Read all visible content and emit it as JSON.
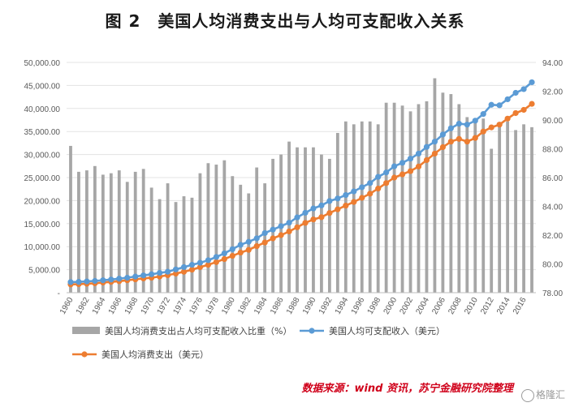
{
  "title": "图 2　美国人均消费支出与人均可支配收入关系",
  "source": "数据来源：wind 资讯，苏宁金融研究院整理",
  "watermark": "格隆汇",
  "chart_data": {
    "type": "bar+line",
    "title": "图 2　美国人均消费支出与人均可支配收入关系",
    "x_tick_labels": [
      "1960",
      "1962",
      "1964",
      "1966",
      "1968",
      "1970",
      "1972",
      "1974",
      "1976",
      "1978",
      "1980",
      "1982",
      "1984",
      "1986",
      "1988",
      "1990",
      "1992",
      "1994",
      "1996",
      "1998",
      "2000",
      "2002",
      "2004",
      "2006",
      "2008",
      "2010",
      "2012",
      "2014",
      "2016"
    ],
    "left_axis": {
      "ylim": [
        0,
        50000
      ],
      "tick_labels": [
        "-",
        "5,000.00",
        "10,000.00",
        "15,000.00",
        "20,000.00",
        "25,000.00",
        "30,000.00",
        "35,000.00",
        "40,000.00",
        "45,000.00",
        "50,000.00"
      ]
    },
    "right_axis": {
      "ylim": [
        78,
        94
      ],
      "tick_labels": [
        "78.00",
        "80.00",
        "82.00",
        "84.00",
        "86.00",
        "88.00",
        "90.00",
        "92.00",
        "94.00"
      ]
    },
    "legend_position": "bottom",
    "colors": {
      "bar": "#a6a6a6",
      "income": "#5b9bd5",
      "consumption": "#ed7d31"
    },
    "series": [
      {
        "name": "美国人均消费支出占人均可支配收入比重（%）",
        "type": "bar",
        "axis": "right",
        "years": [
          1960,
          1961,
          1962,
          1963,
          1964,
          1965,
          1966,
          1967,
          1968,
          1969,
          1970,
          1971,
          1972,
          1973,
          1974,
          1975,
          1976,
          1977,
          1978,
          1979,
          1980,
          1981,
          1982,
          1983,
          1984,
          1985,
          1986,
          1987,
          1988,
          1989,
          1990,
          1991,
          1992,
          1993,
          1994,
          1995,
          1996,
          1997,
          1998,
          1999,
          2000,
          2001,
          2002,
          2003,
          2004,
          2005,
          2006,
          2007,
          2008,
          2009,
          2010,
          2011,
          2012,
          2013,
          2014,
          2015,
          2016,
          2017
        ],
        "values": [
          88.2,
          86.4,
          86.5,
          86.8,
          86.2,
          86.3,
          86.5,
          85.7,
          86.4,
          86.6,
          85.3,
          84.5,
          85.6,
          84.3,
          84.7,
          84.6,
          86.3,
          87.0,
          86.9,
          87.2,
          86.1,
          85.5,
          84.9,
          86.7,
          85.6,
          87.3,
          87.6,
          88.5,
          88.1,
          88.1,
          88.1,
          87.6,
          87.3,
          89.1,
          89.9,
          89.7,
          89.9,
          89.9,
          89.7,
          91.2,
          91.2,
          91.0,
          90.6,
          91.1,
          91.3,
          92.9,
          91.9,
          91.8,
          91.1,
          90.2,
          89.9,
          90.1,
          88.0,
          89.7,
          89.9,
          89.3,
          89.7,
          89.5
        ]
      },
      {
        "name": "美国人均可支配收入（美元）",
        "type": "line",
        "axis": "left",
        "years": [
          1960,
          1961,
          1962,
          1963,
          1964,
          1965,
          1966,
          1967,
          1968,
          1969,
          1970,
          1971,
          1972,
          1973,
          1974,
          1975,
          1976,
          1977,
          1978,
          1979,
          1980,
          1981,
          1982,
          1983,
          1984,
          1985,
          1986,
          1987,
          1988,
          1989,
          1990,
          1991,
          1992,
          1993,
          1994,
          1995,
          1996,
          1997,
          1998,
          1999,
          2000,
          2001,
          2002,
          2003,
          2004,
          2005,
          2006,
          2007,
          2008,
          2009,
          2010,
          2011,
          2012,
          2013,
          2014,
          2015,
          2016,
          2017
        ],
        "values": [
          2300,
          2350,
          2450,
          2550,
          2700,
          2850,
          3050,
          3250,
          3500,
          3750,
          4000,
          4300,
          4550,
          5050,
          5550,
          6050,
          6500,
          7050,
          7750,
          8550,
          9450,
          10400,
          11050,
          11800,
          12950,
          13700,
          14450,
          15200,
          16350,
          17350,
          18300,
          18950,
          19900,
          20450,
          21200,
          22000,
          22900,
          23800,
          25150,
          26100,
          27450,
          28200,
          29100,
          30200,
          31650,
          32800,
          34350,
          35700,
          36700,
          36500,
          37350,
          38800,
          40800,
          40700,
          42000,
          43400,
          44200,
          45700
        ]
      },
      {
        "name": "美国人均消费支出（美元）",
        "type": "line",
        "axis": "left",
        "years": [
          1960,
          1961,
          1962,
          1963,
          1964,
          1965,
          1966,
          1967,
          1968,
          1969,
          1970,
          1971,
          1972,
          1973,
          1974,
          1975,
          1976,
          1977,
          1978,
          1979,
          1980,
          1981,
          1982,
          1983,
          1984,
          1985,
          1986,
          1987,
          1988,
          1989,
          1990,
          1991,
          1992,
          1993,
          1994,
          1995,
          1996,
          1997,
          1998,
          1999,
          2000,
          2001,
          2002,
          2003,
          2004,
          2005,
          2006,
          2007,
          2008,
          2009,
          2010,
          2011,
          2012,
          2013,
          2014,
          2015,
          2016,
          2017
        ],
        "values": [
          1800,
          1850,
          1950,
          2050,
          2200,
          2350,
          2500,
          2700,
          2900,
          3100,
          3250,
          3500,
          3800,
          4150,
          4550,
          5000,
          5550,
          6050,
          6650,
          7300,
          8000,
          8700,
          9300,
          10100,
          10900,
          11800,
          12500,
          13300,
          14200,
          15150,
          15900,
          16400,
          17300,
          18100,
          18900,
          19700,
          20600,
          21500,
          22600,
          23800,
          25000,
          25700,
          26400,
          27400,
          28800,
          30200,
          31600,
          32800,
          33400,
          32800,
          33600,
          35000,
          35900,
          36500,
          37800,
          39000,
          39700,
          41000
        ]
      }
    ]
  }
}
